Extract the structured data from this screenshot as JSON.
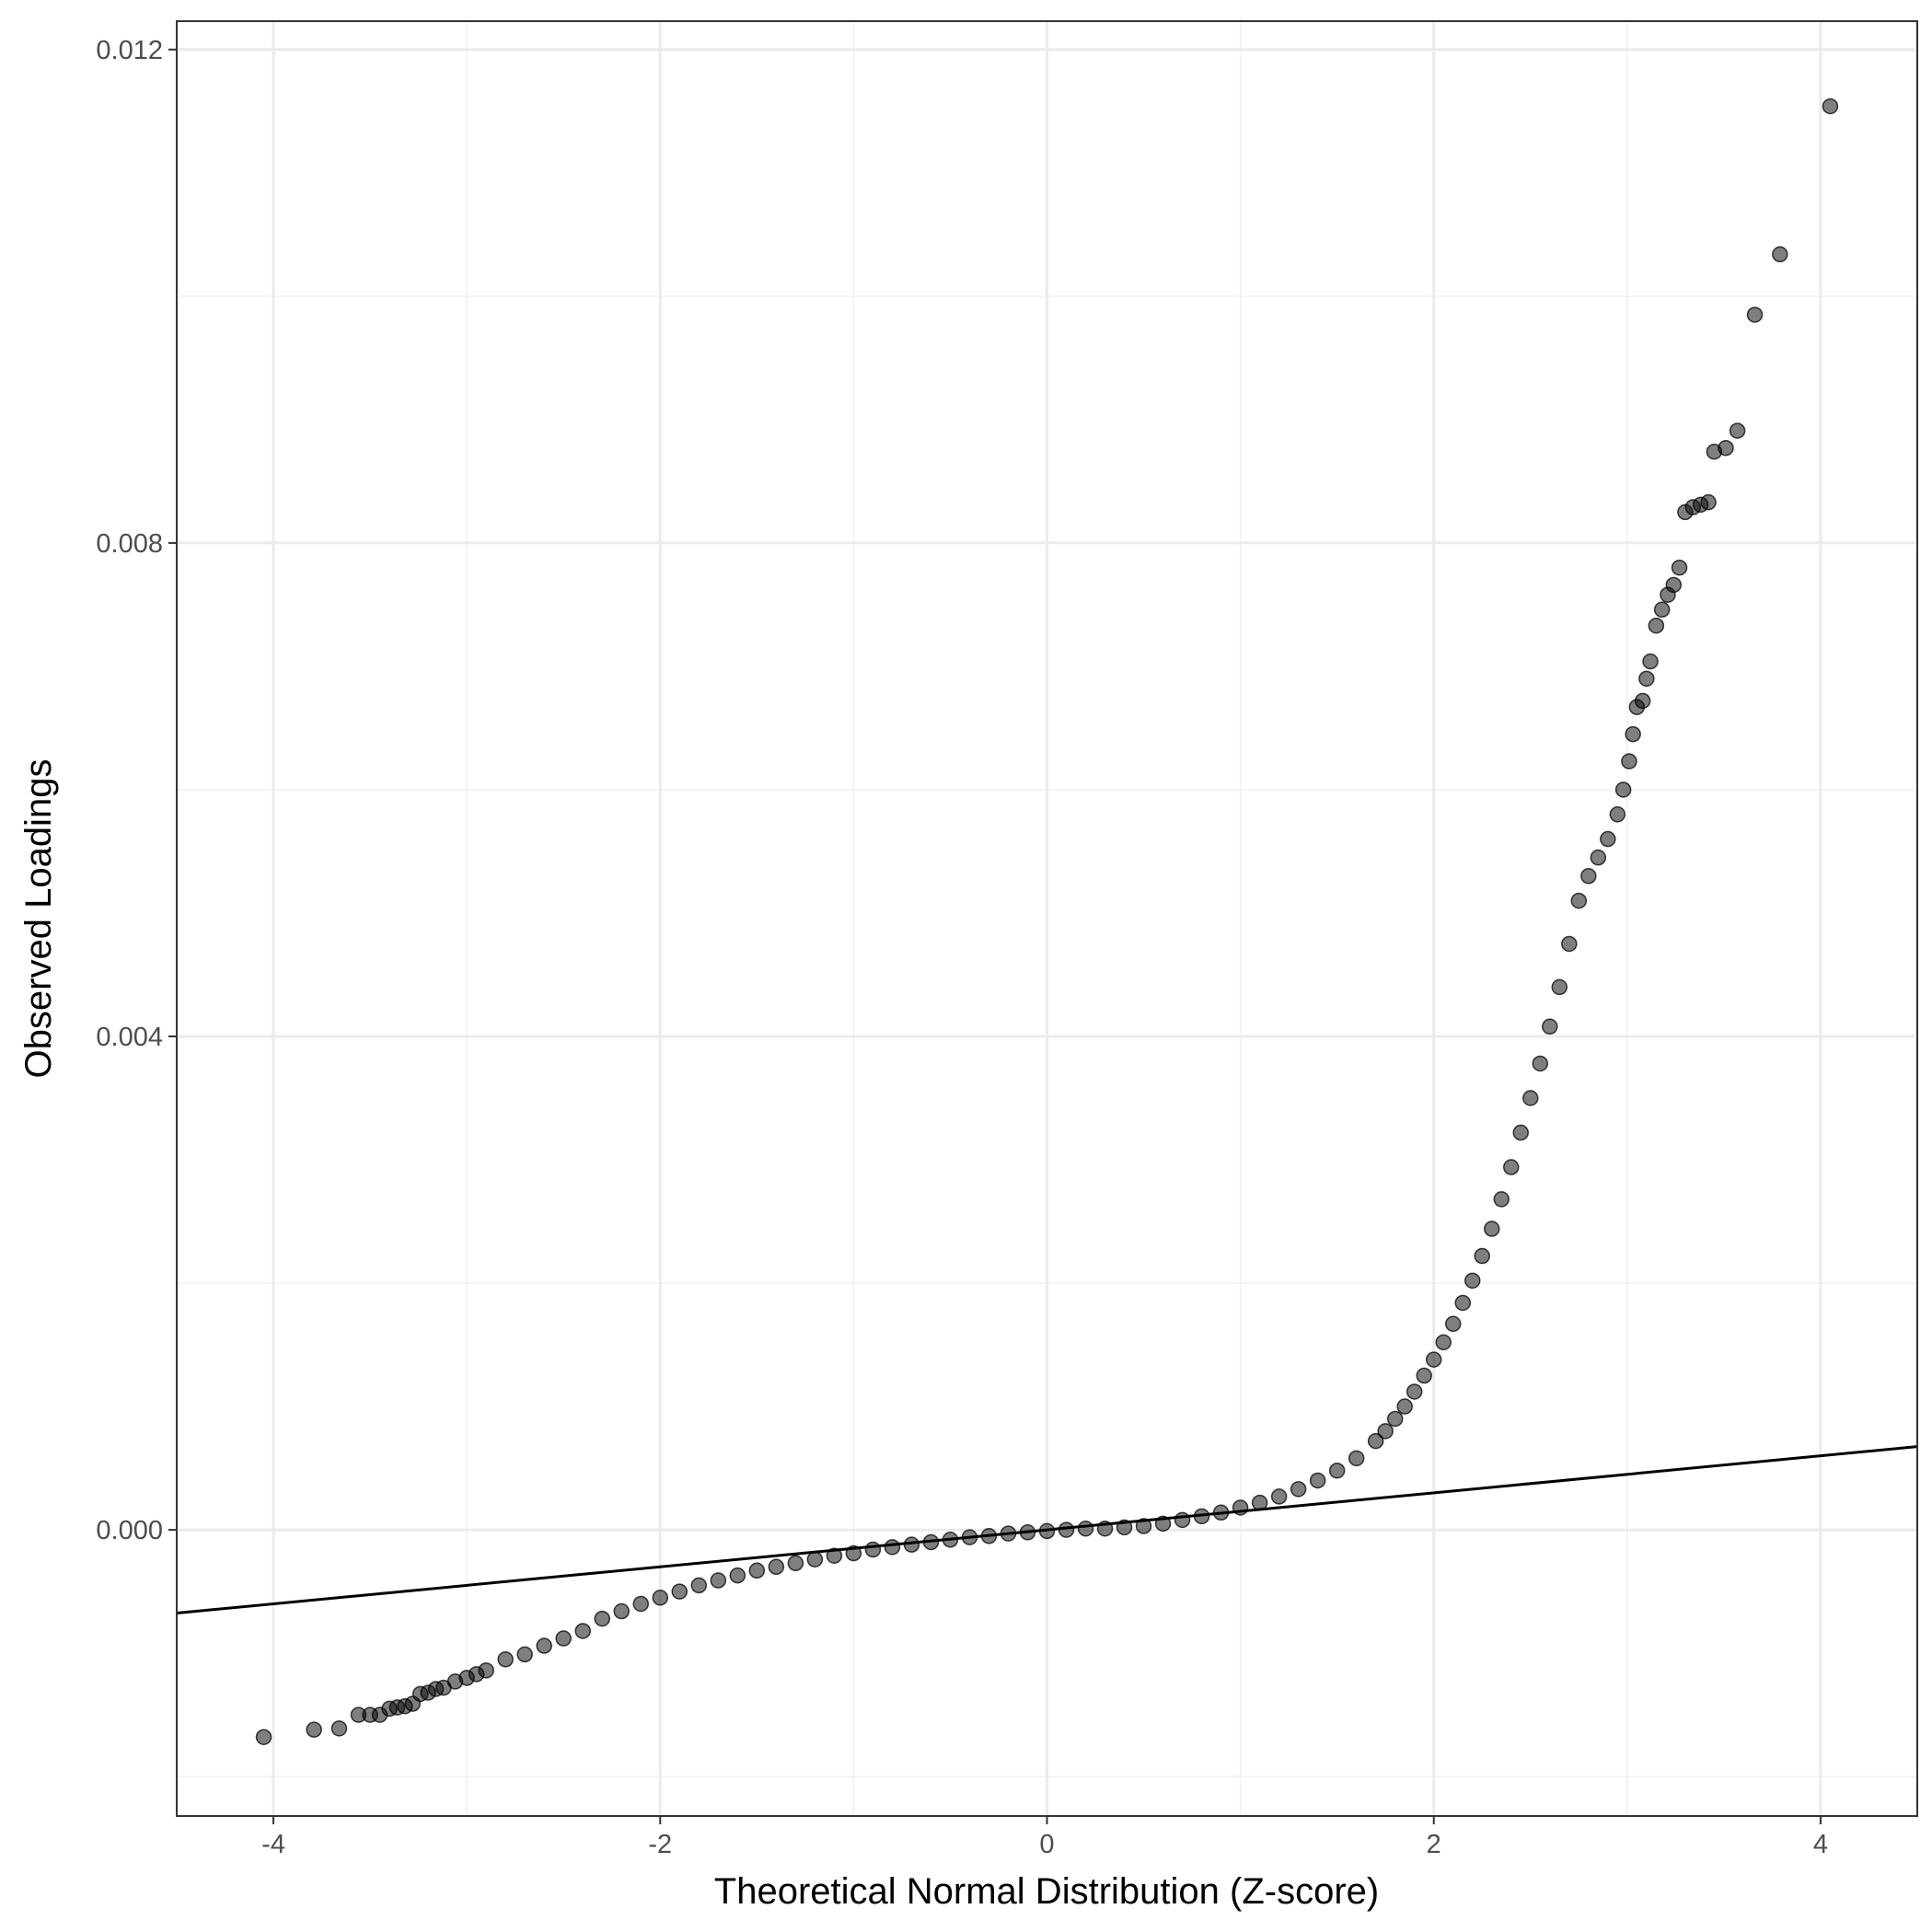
{
  "chart_data": {
    "type": "scatter",
    "title": "",
    "xlabel": "Theoretical Normal Distribution (Z-score)",
    "ylabel": "Observed Loadings",
    "xlim": [
      -4.5,
      4.5
    ],
    "ylim": [
      -0.00232,
      0.01223
    ],
    "x_ticks": [
      -4,
      -2,
      0,
      2,
      4
    ],
    "x_tick_labels": [
      "-4",
      "-2",
      "0",
      "2",
      "4"
    ],
    "y_ticks": [
      0.0,
      0.004,
      0.008,
      0.012
    ],
    "y_tick_labels": [
      "0.000",
      "0.004",
      "0.008",
      "0.012"
    ],
    "grid": true,
    "legend": "none",
    "point_color": "#000000",
    "point_opacity": 0.5,
    "reference_line": {
      "intercept": 0.0,
      "slope": 0.00015
    },
    "series": [
      {
        "points": [
          [
            -4.05,
            -0.00168
          ],
          [
            -3.79,
            -0.00162
          ],
          [
            -3.66,
            -0.00161
          ],
          [
            -3.56,
            -0.0015
          ],
          [
            -3.5,
            -0.0015
          ],
          [
            -3.45,
            -0.0015
          ],
          [
            -3.4,
            -0.00145
          ],
          [
            -3.36,
            -0.00144
          ],
          [
            -3.32,
            -0.00143
          ],
          [
            -3.28,
            -0.00141
          ],
          [
            -3.24,
            -0.00133
          ],
          [
            -3.2,
            -0.00132
          ],
          [
            -3.16,
            -0.00129
          ],
          [
            -3.12,
            -0.00128
          ],
          [
            -3.06,
            -0.00123
          ],
          [
            -3.0,
            -0.0012
          ],
          [
            -2.95,
            -0.00117
          ],
          [
            -2.9,
            -0.00114
          ],
          [
            -2.8,
            -0.00105
          ],
          [
            -2.7,
            -0.00101
          ],
          [
            -2.6,
            -0.00094
          ],
          [
            -2.5,
            -0.00088
          ],
          [
            -2.4,
            -0.00082
          ],
          [
            -2.3,
            -0.00072
          ],
          [
            -2.2,
            -0.00066
          ],
          [
            -2.1,
            -0.0006
          ],
          [
            -2.0,
            -0.00055
          ],
          [
            -1.9,
            -0.0005
          ],
          [
            -1.8,
            -0.00045
          ],
          [
            -1.7,
            -0.00041
          ],
          [
            -1.6,
            -0.00037
          ],
          [
            -1.5,
            -0.00033
          ],
          [
            -1.4,
            -0.0003
          ],
          [
            -1.3,
            -0.00027
          ],
          [
            -1.2,
            -0.00024
          ],
          [
            -1.1,
            -0.00021
          ],
          [
            -1.0,
            -0.00019
          ],
          [
            -0.9,
            -0.00016
          ],
          [
            -0.8,
            -0.00014
          ],
          [
            -0.7,
            -0.00012
          ],
          [
            -0.6,
            -0.0001
          ],
          [
            -0.5,
            -8e-05
          ],
          [
            -0.4,
            -6e-05
          ],
          [
            -0.3,
            -5e-05
          ],
          [
            -0.2,
            -3e-05
          ],
          [
            -0.1,
            -2e-05
          ],
          [
            0.0,
            -1e-05
          ],
          [
            0.1,
            0.0
          ],
          [
            0.2,
            1e-05
          ],
          [
            0.3,
            1e-05
          ],
          [
            0.4,
            2e-05
          ],
          [
            0.5,
            3e-05
          ],
          [
            0.6,
            5e-05
          ],
          [
            0.7,
            8e-05
          ],
          [
            0.8,
            0.00011
          ],
          [
            0.9,
            0.00014
          ],
          [
            1.0,
            0.00018
          ],
          [
            1.1,
            0.00022
          ],
          [
            1.2,
            0.00027
          ],
          [
            1.3,
            0.00033
          ],
          [
            1.4,
            0.0004
          ],
          [
            1.5,
            0.00048
          ],
          [
            1.6,
            0.00058
          ],
          [
            1.7,
            0.00072
          ],
          [
            1.75,
            0.0008
          ],
          [
            1.8,
            0.0009
          ],
          [
            1.85,
            0.001
          ],
          [
            1.9,
            0.00112
          ],
          [
            1.95,
            0.00125
          ],
          [
            2.0,
            0.00138
          ],
          [
            2.05,
            0.00152
          ],
          [
            2.1,
            0.00167
          ],
          [
            2.15,
            0.00184
          ],
          [
            2.2,
            0.00202
          ],
          [
            2.25,
            0.00222
          ],
          [
            2.3,
            0.00244
          ],
          [
            2.35,
            0.00268
          ],
          [
            2.4,
            0.00294
          ],
          [
            2.45,
            0.00322
          ],
          [
            2.5,
            0.0035
          ],
          [
            2.55,
            0.00378
          ],
          [
            2.6,
            0.00408
          ],
          [
            2.65,
            0.0044
          ],
          [
            2.7,
            0.00475
          ],
          [
            2.75,
            0.0051
          ],
          [
            2.8,
            0.0053
          ],
          [
            2.85,
            0.00545
          ],
          [
            2.9,
            0.0056
          ],
          [
            2.95,
            0.0058
          ],
          [
            2.98,
            0.006
          ],
          [
            3.01,
            0.00623
          ],
          [
            3.03,
            0.00645
          ],
          [
            3.05,
            0.00667
          ],
          [
            3.08,
            0.00672
          ],
          [
            3.1,
            0.0069
          ],
          [
            3.12,
            0.00704
          ],
          [
            3.15,
            0.00733
          ],
          [
            3.18,
            0.00746
          ],
          [
            3.21,
            0.00758
          ],
          [
            3.24,
            0.00766
          ],
          [
            3.27,
            0.0078
          ],
          [
            3.3,
            0.00825
          ],
          [
            3.34,
            0.00829
          ],
          [
            3.38,
            0.00831
          ],
          [
            3.42,
            0.00833
          ],
          [
            3.45,
            0.00874
          ],
          [
            3.51,
            0.00877
          ],
          [
            3.57,
            0.00891
          ],
          [
            3.66,
            0.00985
          ],
          [
            3.79,
            0.01034
          ],
          [
            4.05,
            0.01154
          ]
        ]
      }
    ]
  }
}
